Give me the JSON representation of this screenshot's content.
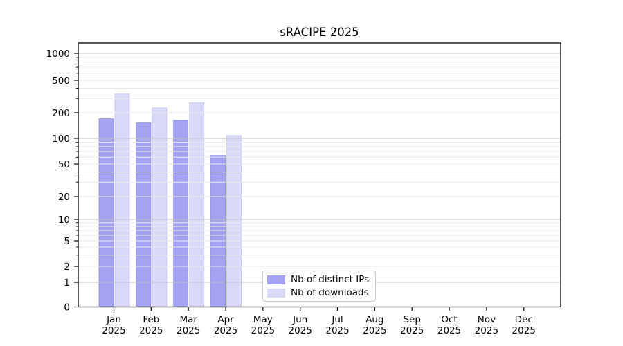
{
  "title": "sRACIPE 2025",
  "chart_data": {
    "type": "bar",
    "title": "sRACIPE 2025",
    "categories": [
      "Jan",
      "Feb",
      "Mar",
      "Apr",
      "May",
      "Jun",
      "Jul",
      "Aug",
      "Sep",
      "Oct",
      "Nov",
      "Dec"
    ],
    "category_year": "2025",
    "series": [
      {
        "name": "Nb of distinct IPs",
        "color": "#a3a3f2",
        "edge": "#8a8ae0",
        "values": [
          170,
          152,
          163,
          63,
          null,
          null,
          null,
          null,
          null,
          null,
          null,
          null
        ]
      },
      {
        "name": "Nb of downloads",
        "color": "#d9d9fa",
        "edge": "#c3c3f0",
        "values": [
          340,
          230,
          265,
          108,
          null,
          null,
          null,
          null,
          null,
          null,
          null,
          null
        ]
      }
    ],
    "y_ticks": [
      0,
      1,
      2,
      5,
      10,
      20,
      50,
      100,
      200,
      500,
      1000
    ],
    "y_major_ticks": [
      1,
      10,
      100,
      1000
    ],
    "y_minor_ticks": [
      3,
      4,
      6,
      7,
      8,
      9,
      30,
      40,
      60,
      70,
      80,
      90,
      300,
      400,
      600,
      700,
      800,
      900
    ],
    "ylim": [
      0,
      1000
    ],
    "scale": "log-with-zero-baseline",
    "grid": true,
    "legend_position": "lower-center"
  },
  "colors": {
    "bar_ips": "#a3a3f2",
    "bar_downloads": "#d9d9fa",
    "grid_major": "#c2c2c2",
    "grid_minor": "#ebebeb",
    "axis": "#000000",
    "tick_text": "#000000",
    "legend_border": "#cccccc",
    "background": "#ffffff"
  }
}
